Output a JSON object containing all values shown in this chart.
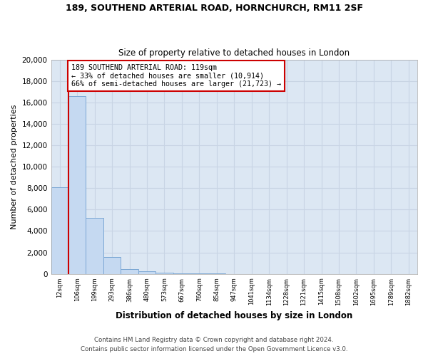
{
  "title1": "189, SOUTHEND ARTERIAL ROAD, HORNCHURCH, RM11 2SF",
  "title2": "Size of property relative to detached houses in London",
  "xlabel": "Distribution of detached houses by size in London",
  "ylabel": "Number of detached properties",
  "bar_color": "#c5d9f1",
  "bar_edge_color": "#7ba7d4",
  "categories": [
    "12sqm",
    "106sqm",
    "199sqm",
    "293sqm",
    "386sqm",
    "480sqm",
    "573sqm",
    "667sqm",
    "760sqm",
    "854sqm",
    "947sqm",
    "1041sqm",
    "1134sqm",
    "1228sqm",
    "1321sqm",
    "1415sqm",
    "1508sqm",
    "1602sqm",
    "1695sqm",
    "1789sqm",
    "1882sqm"
  ],
  "values": [
    8050,
    16550,
    5250,
    1600,
    430,
    220,
    110,
    55,
    30,
    12,
    5,
    3,
    2,
    1,
    1,
    1,
    0,
    0,
    0,
    0,
    0
  ],
  "annotation_text": "189 SOUTHEND ARTERIAL ROAD: 119sqm\n← 33% of detached houses are smaller (10,914)\n66% of semi-detached houses are larger (21,723) →",
  "annotation_box_color": "#ffffff",
  "annotation_box_edge_color": "#cc0000",
  "vline_color": "#cc0000",
  "vline_x": 0.5,
  "ylim": [
    0,
    20000
  ],
  "yticks": [
    0,
    2000,
    4000,
    6000,
    8000,
    10000,
    12000,
    14000,
    16000,
    18000,
    20000
  ],
  "grid_color": "#c8d4e4",
  "bg_color": "#dce7f3",
  "footer1": "Contains HM Land Registry data © Crown copyright and database right 2024.",
  "footer2": "Contains public sector information licensed under the Open Government Licence v3.0."
}
